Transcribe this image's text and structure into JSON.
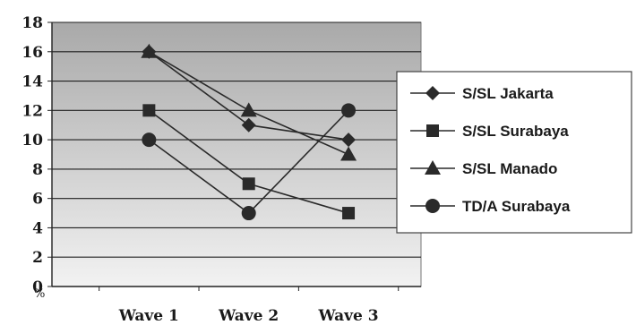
{
  "chart_data": {
    "type": "line",
    "title": "",
    "xlabel": "",
    "ylabel": "%",
    "ylim": [
      0,
      18
    ],
    "ytick_step": 2,
    "grid": true,
    "legend_position": "right",
    "categories": [
      "Wave 1",
      "Wave 2",
      "Wave 3"
    ],
    "series": [
      {
        "name": "S/SL Jakarta",
        "marker": "diamond",
        "values": [
          16,
          11,
          10
        ]
      },
      {
        "name": "S/SL Surabaya",
        "marker": "square",
        "values": [
          12,
          7,
          5
        ]
      },
      {
        "name": "S/SL Manado",
        "marker": "triangle",
        "values": [
          16,
          12,
          9
        ]
      },
      {
        "name": "TD/A Surabaya",
        "marker": "circle",
        "values": [
          10,
          5,
          12
        ]
      }
    ],
    "colors": {
      "line": "#2a2a2a",
      "plot_top": "#a9a9a9",
      "plot_bottom": "#f2f2f2",
      "grid": "#1f1f1f"
    }
  }
}
